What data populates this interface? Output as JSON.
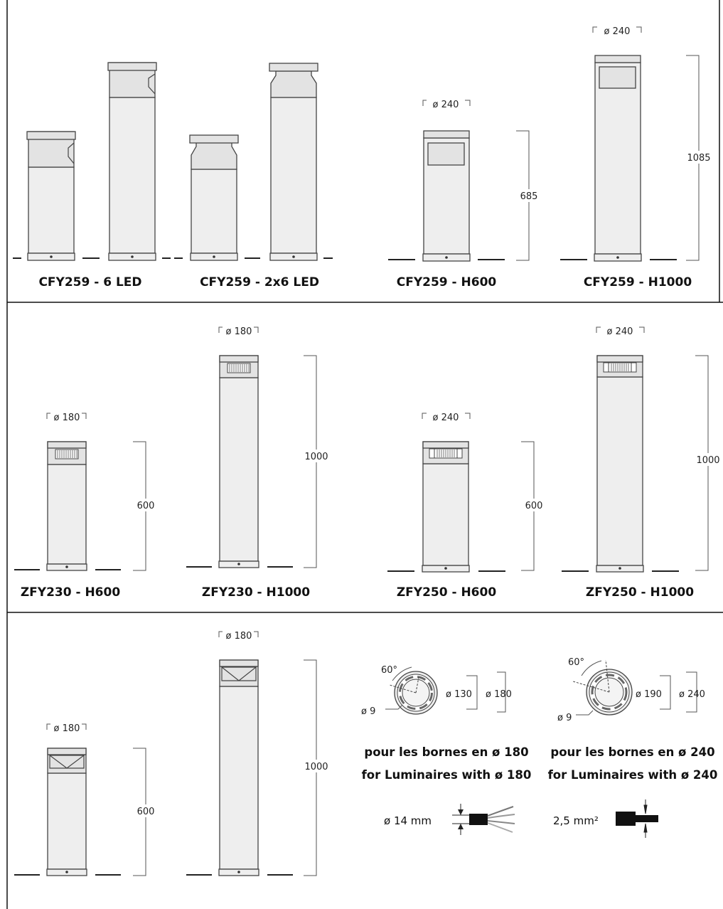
{
  "captions": {
    "cfy_6led": "CFY259 - 6 LED",
    "cfy_2x6led": "CFY259 - 2x6 LED",
    "cfy_h600": "CFY259 - H600",
    "cfy_h1000": "CFY259 - H1000",
    "zfy230_h600": "ZFY230 - H600",
    "zfy230_h1000": "ZFY230 - H1000",
    "zfy250_h600": "ZFY250 - H600",
    "zfy250_h1000": "ZFY250 - H1000"
  },
  "dimensions": {
    "d240": "ø 240",
    "d180": "ø 180",
    "h685": "685",
    "h1085": "1085",
    "h600": "600",
    "h1000": "1000"
  },
  "bases": {
    "small": {
      "angle": "60°",
      "hole": "ø 9",
      "inner": "ø 130",
      "outer": "ø 180",
      "fr": "pour les bornes en ø 180",
      "en": "for Luminaires with ø 180",
      "cable": "ø 14 mm"
    },
    "large": {
      "angle": "60°",
      "hole": "ø 9",
      "inner": "ø 190",
      "outer": "ø 240",
      "fr": "pour les bornes en ø 240",
      "en": "for Luminaires with ø 240",
      "wire": "2,5 mm²"
    }
  }
}
